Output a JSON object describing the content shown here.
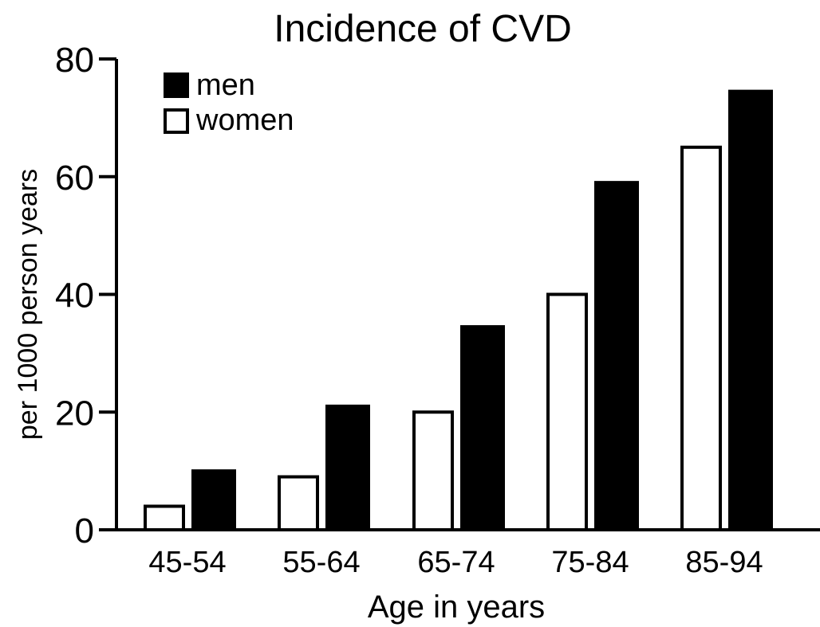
{
  "chart_data": {
    "type": "bar",
    "title": "Incidence of CVD",
    "xlabel": "Age in years",
    "ylabel": "per 1000 person years",
    "categories": [
      "45-54",
      "55-64",
      "65-74",
      "75-84",
      "85-94"
    ],
    "series": [
      {
        "name": "women",
        "values": [
          4,
          9,
          20,
          40,
          65
        ],
        "color": "#ffffff",
        "stroke": "#000000"
      },
      {
        "name": "men",
        "values": [
          10,
          21,
          34.5,
          59,
          74.5
        ],
        "color": "#000000",
        "stroke": "#000000"
      }
    ],
    "ylim": [
      0,
      80
    ],
    "yticks": [
      "0",
      "20",
      "40",
      "60",
      "80"
    ],
    "grid": false,
    "legend_position": "top-left",
    "legend_order": [
      "men",
      "women"
    ]
  }
}
